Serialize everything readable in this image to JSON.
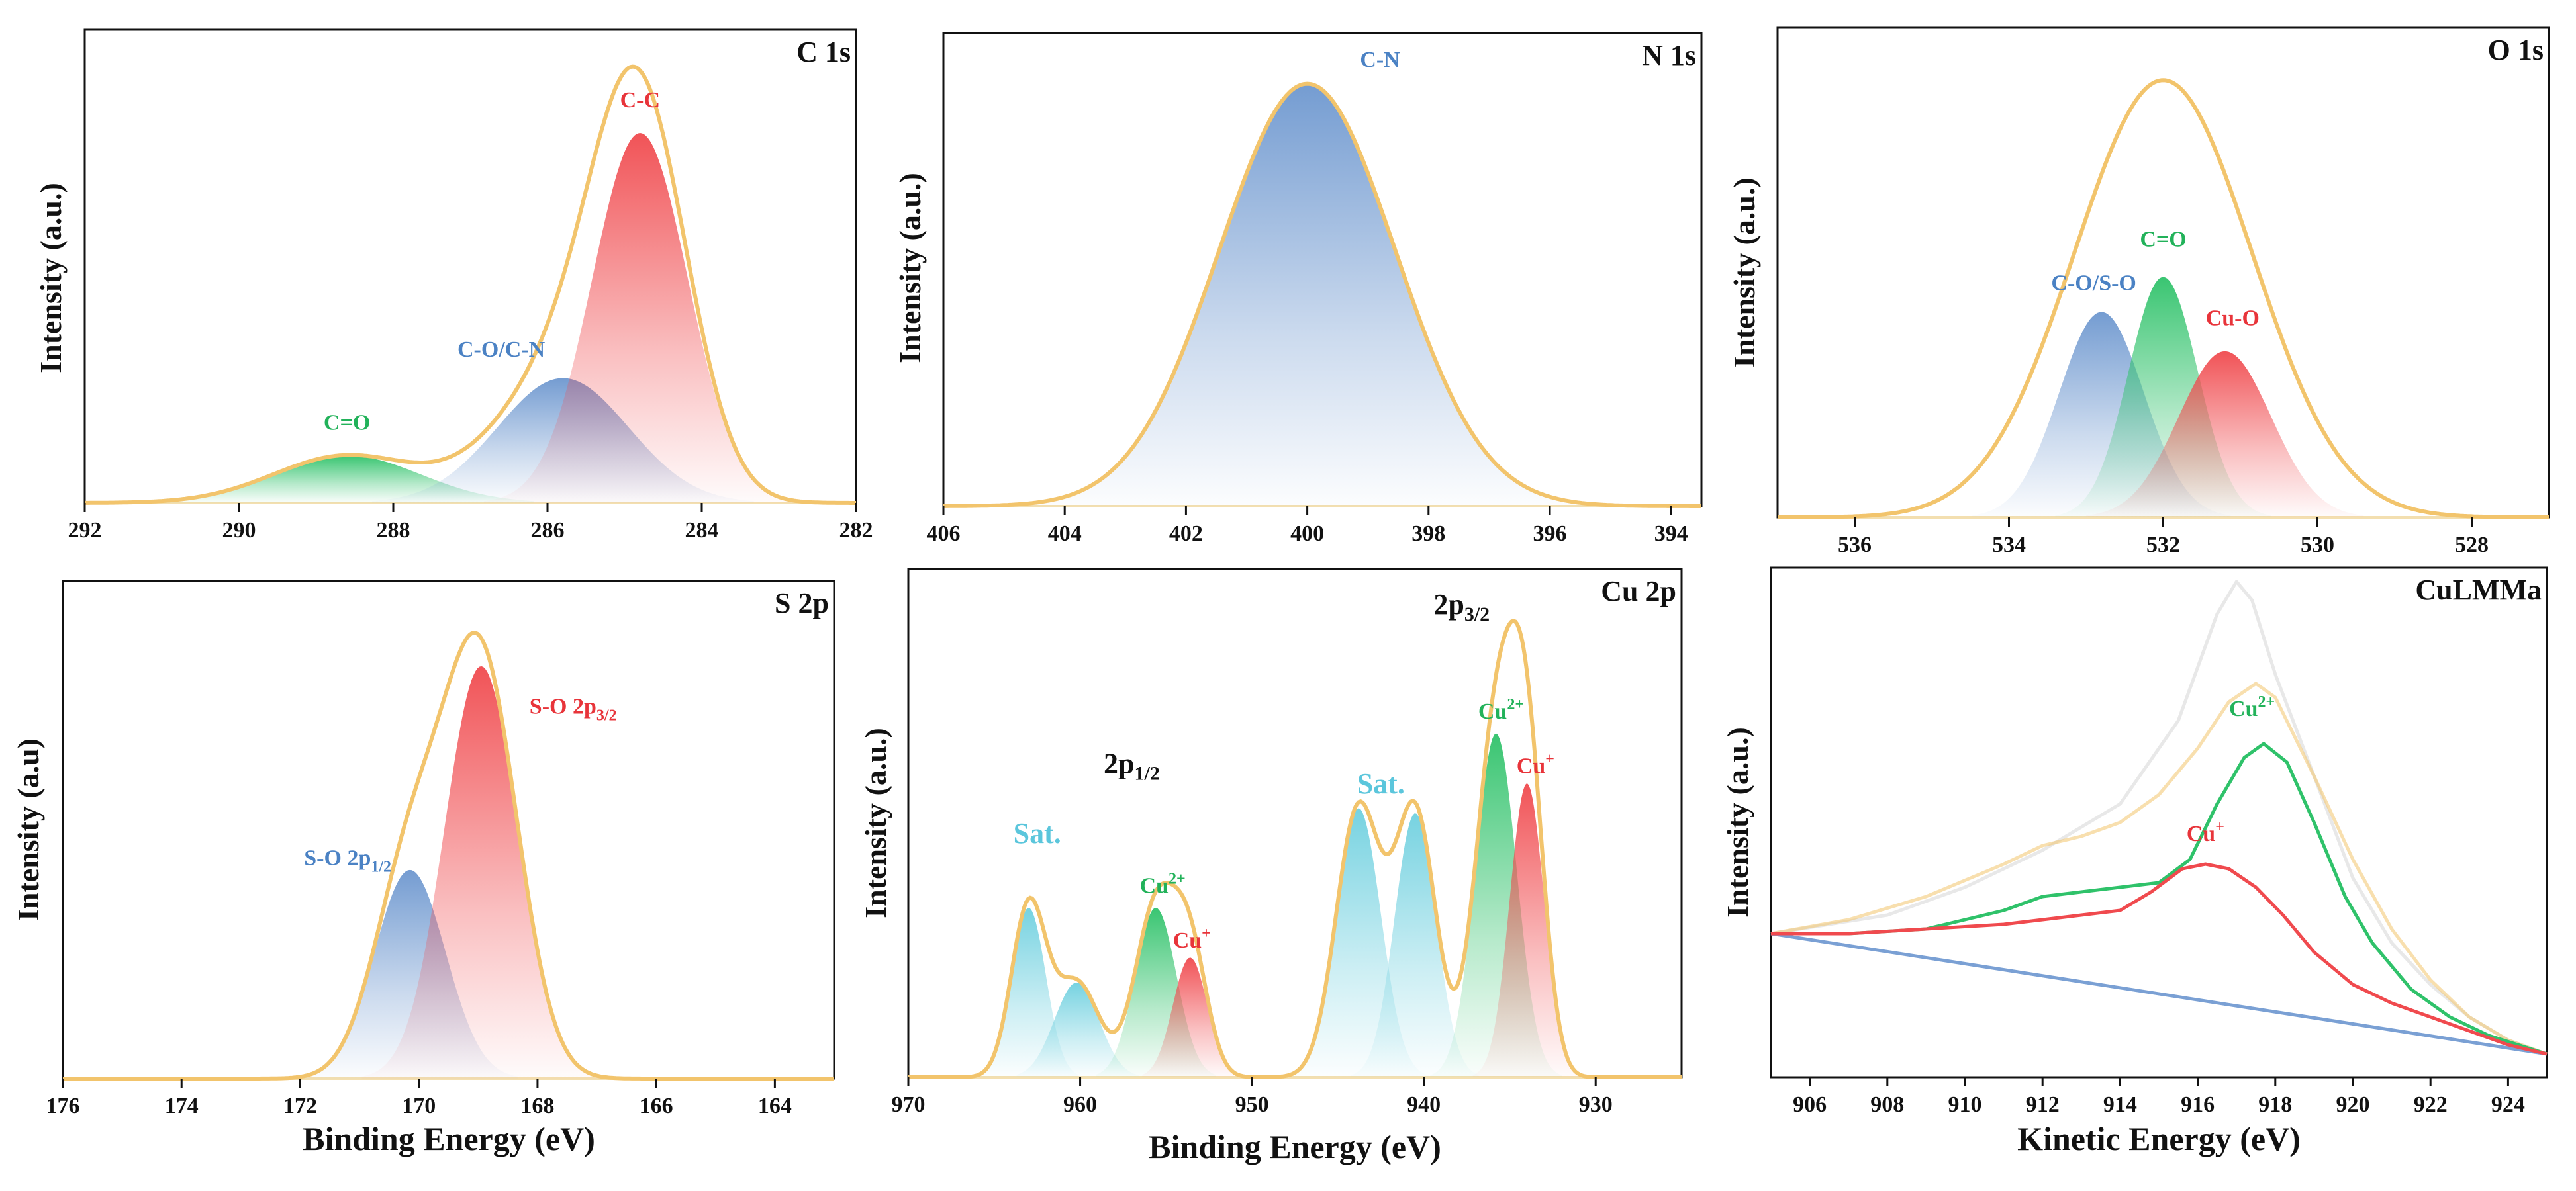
{
  "colors": {
    "envelope": "#f2c46c",
    "red": "#f04a4e",
    "blue": "#6d97cf",
    "green": "#2fc26a",
    "cyan": "#6fd0df",
    "baseline": "#f3dfb0",
    "kinetic_bg": "#7aa0d4",
    "text_red": "#e8343a",
    "text_blue": "#4b82c4",
    "text_green": "#22b25a",
    "text_cyan": "#5bc6dc"
  },
  "chart_data": [
    {
      "id": "c1s",
      "type": "line",
      "title": "C 1s",
      "xlabel": "",
      "ylabel": "Intensity (a.u.)",
      "xlim": [
        292,
        282
      ],
      "ylim": [
        0,
        1.1
      ],
      "x_ticks": [
        292,
        290,
        288,
        286,
        284,
        282
      ],
      "tick_labels": [
        "292",
        "290",
        "288",
        "286",
        "284",
        "282"
      ],
      "baseline": 0.0,
      "envelope": {
        "type": "sum"
      },
      "components": [
        {
          "label": "C=O",
          "center": 288.6,
          "height": 0.11,
          "width": 0.95,
          "color": "green"
        },
        {
          "label": "C-O/C-N",
          "center": 285.8,
          "height": 0.29,
          "width": 0.85,
          "color": "blue"
        },
        {
          "label": "C-C",
          "center": 284.8,
          "height": 0.86,
          "width": 0.62,
          "color": "red"
        }
      ],
      "annotations": [
        {
          "text": "C=O",
          "x": 288.6,
          "y": 0.17,
          "color": "text_green"
        },
        {
          "text": "C-O/C-N",
          "x": 286.6,
          "y": 0.34,
          "color": "text_blue"
        },
        {
          "text": "C-C",
          "x": 284.8,
          "y": 0.92,
          "color": "text_red"
        }
      ]
    },
    {
      "id": "n1s",
      "type": "line",
      "title": "N 1s",
      "xlabel": "",
      "ylabel": "Intensity (a.u.)",
      "xlim": [
        406,
        393.5
      ],
      "ylim": [
        0,
        1.12
      ],
      "x_ticks": [
        406,
        404,
        402,
        400,
        398,
        396,
        394
      ],
      "tick_labels": [
        "406",
        "404",
        "402",
        "400",
        "398",
        "396",
        "394"
      ],
      "baseline": 0.0,
      "envelope": {
        "type": "sum"
      },
      "components": [
        {
          "label": "C-N",
          "center": 400.0,
          "height": 1.0,
          "width": 1.45,
          "color": "blue"
        }
      ],
      "annotations": [
        {
          "text": "C-N",
          "x": 398.8,
          "y": 1.04,
          "color": "text_blue"
        }
      ]
    },
    {
      "id": "o1s",
      "type": "line",
      "title": "O 1s",
      "xlabel": "",
      "ylabel": "Intensity (a.u.)",
      "xlim": [
        537,
        527
      ],
      "ylim": [
        0,
        1.12
      ],
      "x_ticks": [
        536,
        534,
        532,
        530,
        528
      ],
      "tick_labels": [
        "536",
        "534",
        "532",
        "530",
        "528"
      ],
      "baseline": 0.0,
      "envelope": {
        "type": "gauss",
        "center": 532.0,
        "height": 1.0,
        "width": 1.15
      },
      "components": [
        {
          "label": "C-O/S-O",
          "center": 532.8,
          "height": 0.47,
          "width": 0.55,
          "color": "blue"
        },
        {
          "label": "C=O",
          "center": 532.0,
          "height": 0.55,
          "width": 0.45,
          "color": "green"
        },
        {
          "label": "Cu-O",
          "center": 531.2,
          "height": 0.38,
          "width": 0.6,
          "color": "red"
        }
      ],
      "annotations": [
        {
          "text": "C-O/S-O",
          "x": 532.9,
          "y": 0.52,
          "color": "text_blue"
        },
        {
          "text": "C=O",
          "x": 532.0,
          "y": 0.62,
          "color": "text_green"
        },
        {
          "text": "Cu-O",
          "x": 531.1,
          "y": 0.44,
          "color": "text_red"
        }
      ]
    },
    {
      "id": "s2p",
      "type": "line",
      "title": "S 2p",
      "xlabel": "Binding Energy (eV)",
      "ylabel": "Intensity (a.u)",
      "xlim": [
        176,
        163
      ],
      "ylim": [
        0,
        1.05
      ],
      "x_ticks": [
        176,
        174,
        172,
        170,
        168,
        166,
        164
      ],
      "tick_labels": [
        "176",
        "174",
        "172",
        "170",
        "168",
        "166",
        "164"
      ],
      "baseline": 0.0,
      "envelope": {
        "type": "sum"
      },
      "components": [
        {
          "label": "S-O 2p1/2",
          "center": 170.15,
          "height": 0.44,
          "width": 0.6,
          "color": "blue"
        },
        {
          "label": "S-O 2p3/2",
          "center": 168.95,
          "height": 0.87,
          "width": 0.62,
          "color": "red"
        }
      ],
      "annotations": [
        {
          "text": "S-O 2p",
          "sub": "1/2",
          "x": 171.2,
          "y": 0.45,
          "color": "text_blue"
        },
        {
          "text": "S-O 2p",
          "sub": "3/2",
          "x": 167.4,
          "y": 0.77,
          "color": "text_red"
        }
      ]
    },
    {
      "id": "cu2p",
      "type": "line",
      "title": "Cu 2p",
      "xlabel": "Binding Energy (eV)",
      "ylabel": "Intensity (a.u.)",
      "xlim": [
        970,
        925
      ],
      "ylim": [
        0,
        1.02
      ],
      "x_ticks": [
        970,
        960,
        950,
        940,
        930
      ],
      "tick_labels": [
        "970",
        "960",
        "950",
        "940",
        "930"
      ],
      "baseline": 0.0,
      "envelope": {
        "type": "sum"
      },
      "components": [
        {
          "label": "Sat.",
          "center": 963.0,
          "height": 0.34,
          "width": 1.0,
          "color": "cyan"
        },
        {
          "label": "Sat.",
          "center": 960.2,
          "height": 0.19,
          "width": 1.3,
          "color": "cyan"
        },
        {
          "label": "Cu2+",
          "center": 955.6,
          "height": 0.34,
          "width": 1.2,
          "color": "green"
        },
        {
          "label": "Cu+",
          "center": 953.6,
          "height": 0.24,
          "width": 1.0,
          "color": "red"
        },
        {
          "label": "Sat.",
          "center": 943.8,
          "height": 0.54,
          "width": 1.3,
          "color": "cyan"
        },
        {
          "label": "Sat.",
          "center": 940.5,
          "height": 0.53,
          "width": 1.2,
          "color": "cyan"
        },
        {
          "label": "Cu2+",
          "center": 935.8,
          "height": 0.69,
          "width": 1.2,
          "color": "green"
        },
        {
          "label": "Cu+",
          "center": 934.0,
          "height": 0.59,
          "width": 1.0,
          "color": "red"
        }
      ],
      "annotations": [
        {
          "text": "Sat.",
          "x": 962.5,
          "y": 0.47,
          "color": "text_cyan",
          "size": "big"
        },
        {
          "text": "2p",
          "sub": "1/2",
          "x": 957.0,
          "y": 0.61,
          "color": "#111111",
          "size": "big"
        },
        {
          "text": "Cu",
          "sup": "2+",
          "x": 955.2,
          "y": 0.37,
          "color": "text_green"
        },
        {
          "text": "Cu",
          "sup": "+",
          "x": 953.5,
          "y": 0.26,
          "color": "text_red"
        },
        {
          "text": "Sat.",
          "x": 942.5,
          "y": 0.57,
          "color": "text_cyan",
          "size": "big"
        },
        {
          "text": "2p",
          "sub": "3/2",
          "x": 937.8,
          "y": 0.93,
          "color": "#111111",
          "size": "big"
        },
        {
          "text": "Cu",
          "sup": "2+",
          "x": 935.5,
          "y": 0.72,
          "color": "text_green"
        },
        {
          "text": "Cu",
          "sup": "+",
          "x": 933.5,
          "y": 0.61,
          "color": "text_red"
        }
      ]
    },
    {
      "id": "culmm",
      "type": "line",
      "title": "CuLMMa",
      "xlabel": "Kinetic Energy (eV)",
      "ylabel": "Intensity (a.u.)",
      "xlim": [
        905,
        925
      ],
      "ylim": [
        -0.05,
        1.05
      ],
      "x_ticks": [
        906,
        908,
        910,
        912,
        914,
        916,
        918,
        920,
        922,
        924
      ],
      "tick_labels": [
        "906",
        "908",
        "910",
        "912",
        "914",
        "916",
        "918",
        "920",
        "922",
        "924"
      ],
      "series": [
        {
          "name": "background",
          "color": "kinetic_bg",
          "opacity": 1.0,
          "x": [
            905,
            925
          ],
          "y": [
            0.26,
            0.0
          ]
        },
        {
          "name": "raw",
          "color": "#e8e8e8",
          "opacity": 1.0,
          "x": [
            905,
            908,
            910,
            912,
            914,
            915.5,
            916.5,
            917.0,
            917.4,
            918,
            919,
            920,
            921,
            922,
            923,
            924,
            925
          ],
          "y": [
            0.26,
            0.3,
            0.36,
            0.44,
            0.54,
            0.72,
            0.95,
            1.02,
            0.98,
            0.82,
            0.6,
            0.38,
            0.24,
            0.15,
            0.08,
            0.03,
            0.0
          ]
        },
        {
          "name": "fit envelope",
          "color": "envelope",
          "opacity": 0.55,
          "x": [
            905,
            907,
            909,
            911,
            912,
            913,
            914,
            915,
            916,
            916.8,
            917.5,
            918,
            919,
            920,
            921,
            922,
            923,
            924,
            925
          ],
          "y": [
            0.26,
            0.29,
            0.34,
            0.41,
            0.45,
            0.47,
            0.5,
            0.56,
            0.66,
            0.76,
            0.8,
            0.77,
            0.6,
            0.42,
            0.27,
            0.16,
            0.08,
            0.03,
            0.0
          ]
        },
        {
          "name": "Cu2+",
          "color": "green",
          "opacity": 1.0,
          "x": [
            905,
            907,
            909,
            910,
            911,
            912,
            913,
            914,
            915,
            915.8,
            916.5,
            917.2,
            917.7,
            918.3,
            919,
            919.8,
            920.5,
            921.5,
            922.5,
            923.5,
            925
          ],
          "y": [
            0.26,
            0.26,
            0.27,
            0.29,
            0.31,
            0.34,
            0.35,
            0.36,
            0.37,
            0.42,
            0.54,
            0.64,
            0.67,
            0.63,
            0.5,
            0.34,
            0.24,
            0.14,
            0.08,
            0.04,
            0.0
          ]
        },
        {
          "name": "Cu+",
          "color": "red",
          "opacity": 1.0,
          "x": [
            905,
            907,
            909,
            911,
            912,
            913,
            914,
            914.8,
            915.6,
            916.2,
            916.8,
            917.5,
            918.2,
            919,
            920,
            921,
            922,
            923,
            924,
            925
          ],
          "y": [
            0.26,
            0.26,
            0.27,
            0.28,
            0.29,
            0.3,
            0.31,
            0.35,
            0.4,
            0.41,
            0.4,
            0.36,
            0.3,
            0.22,
            0.15,
            0.11,
            0.08,
            0.05,
            0.02,
            0.0
          ]
        }
      ],
      "annotations": [
        {
          "text": "Cu",
          "sup": "2+",
          "x": 917.4,
          "y": 0.73,
          "color": "text_green"
        },
        {
          "text": "Cu",
          "sup": "+",
          "x": 916.2,
          "y": 0.46,
          "color": "text_red"
        }
      ]
    }
  ]
}
